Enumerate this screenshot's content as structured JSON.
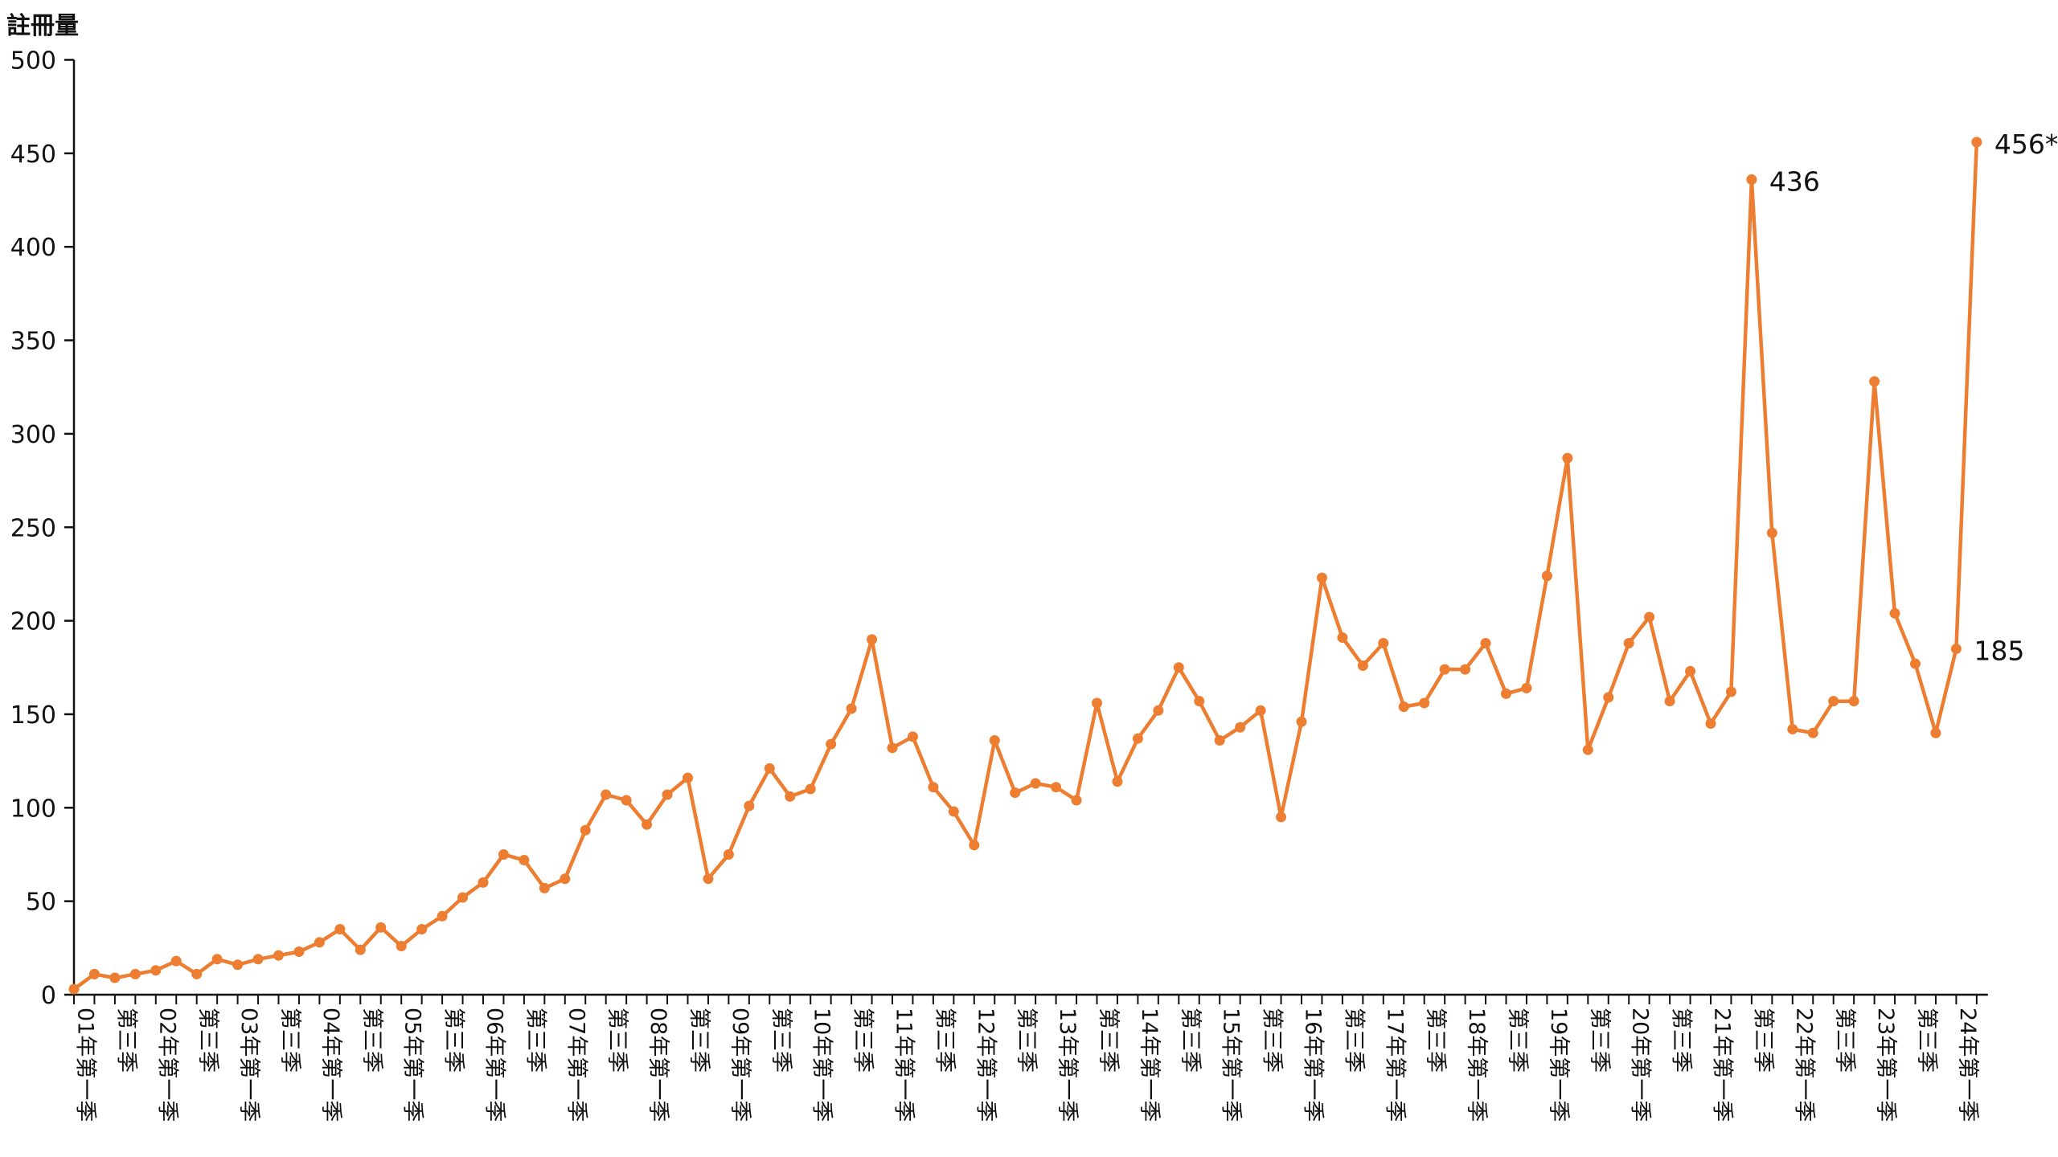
{
  "chart_data": {
    "type": "line",
    "title": "",
    "xlabel": "",
    "ylabel": "註冊量",
    "ylim": [
      0,
      500
    ],
    "yticks": [
      0,
      50,
      100,
      150,
      200,
      250,
      300,
      350,
      400,
      450,
      500
    ],
    "grid": false,
    "legend": "none",
    "colors": {
      "series": "#ED7D31",
      "axis": "#111111"
    },
    "tick_labels": [
      "01年第一季",
      "第三季",
      "02年第一季",
      "第三季",
      "03年第一季",
      "第三季",
      "04年第一季",
      "第三季",
      "05年第一季",
      "第三季",
      "06年第一季",
      "第三季",
      "07年第一季",
      "第三季",
      "08年第一季",
      "第三季",
      "09年第一季",
      "第三季",
      "10年第一季",
      "第三季",
      "11年第一季",
      "第三季",
      "12年第一季",
      "第三季",
      "13年第一季",
      "第三季",
      "14年第一季",
      "第三季",
      "15年第一季",
      "第三季",
      "16年第一季",
      "第三季",
      "17年第一季",
      "第三季",
      "18年第一季",
      "第三季",
      "19年第一季",
      "第三季",
      "20年第一季",
      "第三季",
      "21年第一季",
      "第三季",
      "22年第一季",
      "第三季",
      "23年第一季",
      "第三季",
      "24年第一季"
    ],
    "series": [
      {
        "values": [
          3,
          11,
          9,
          11,
          13,
          18,
          11,
          19,
          16,
          19,
          21,
          23,
          28,
          35,
          24,
          36,
          26,
          35,
          42,
          52,
          60,
          75,
          72,
          57,
          62,
          88,
          107,
          104,
          91,
          107,
          116,
          62,
          75,
          101,
          121,
          106,
          110,
          134,
          153,
          190,
          132,
          138,
          111,
          98,
          80,
          136,
          108,
          113,
          111,
          104,
          156,
          114,
          137,
          152,
          175,
          157,
          136,
          143,
          152,
          95,
          146,
          223,
          191,
          176,
          188,
          154,
          156,
          174,
          174,
          188,
          161,
          164,
          224,
          287,
          131,
          159,
          188,
          202,
          157,
          173,
          145,
          162,
          436,
          247,
          142,
          140,
          157,
          157,
          328,
          204,
          177,
          140,
          185,
          456
        ]
      }
    ],
    "annotations": [
      {
        "text": "436",
        "index": 82
      },
      {
        "text": "185",
        "index": 92
      },
      {
        "text": "456*",
        "index": 93
      }
    ]
  }
}
